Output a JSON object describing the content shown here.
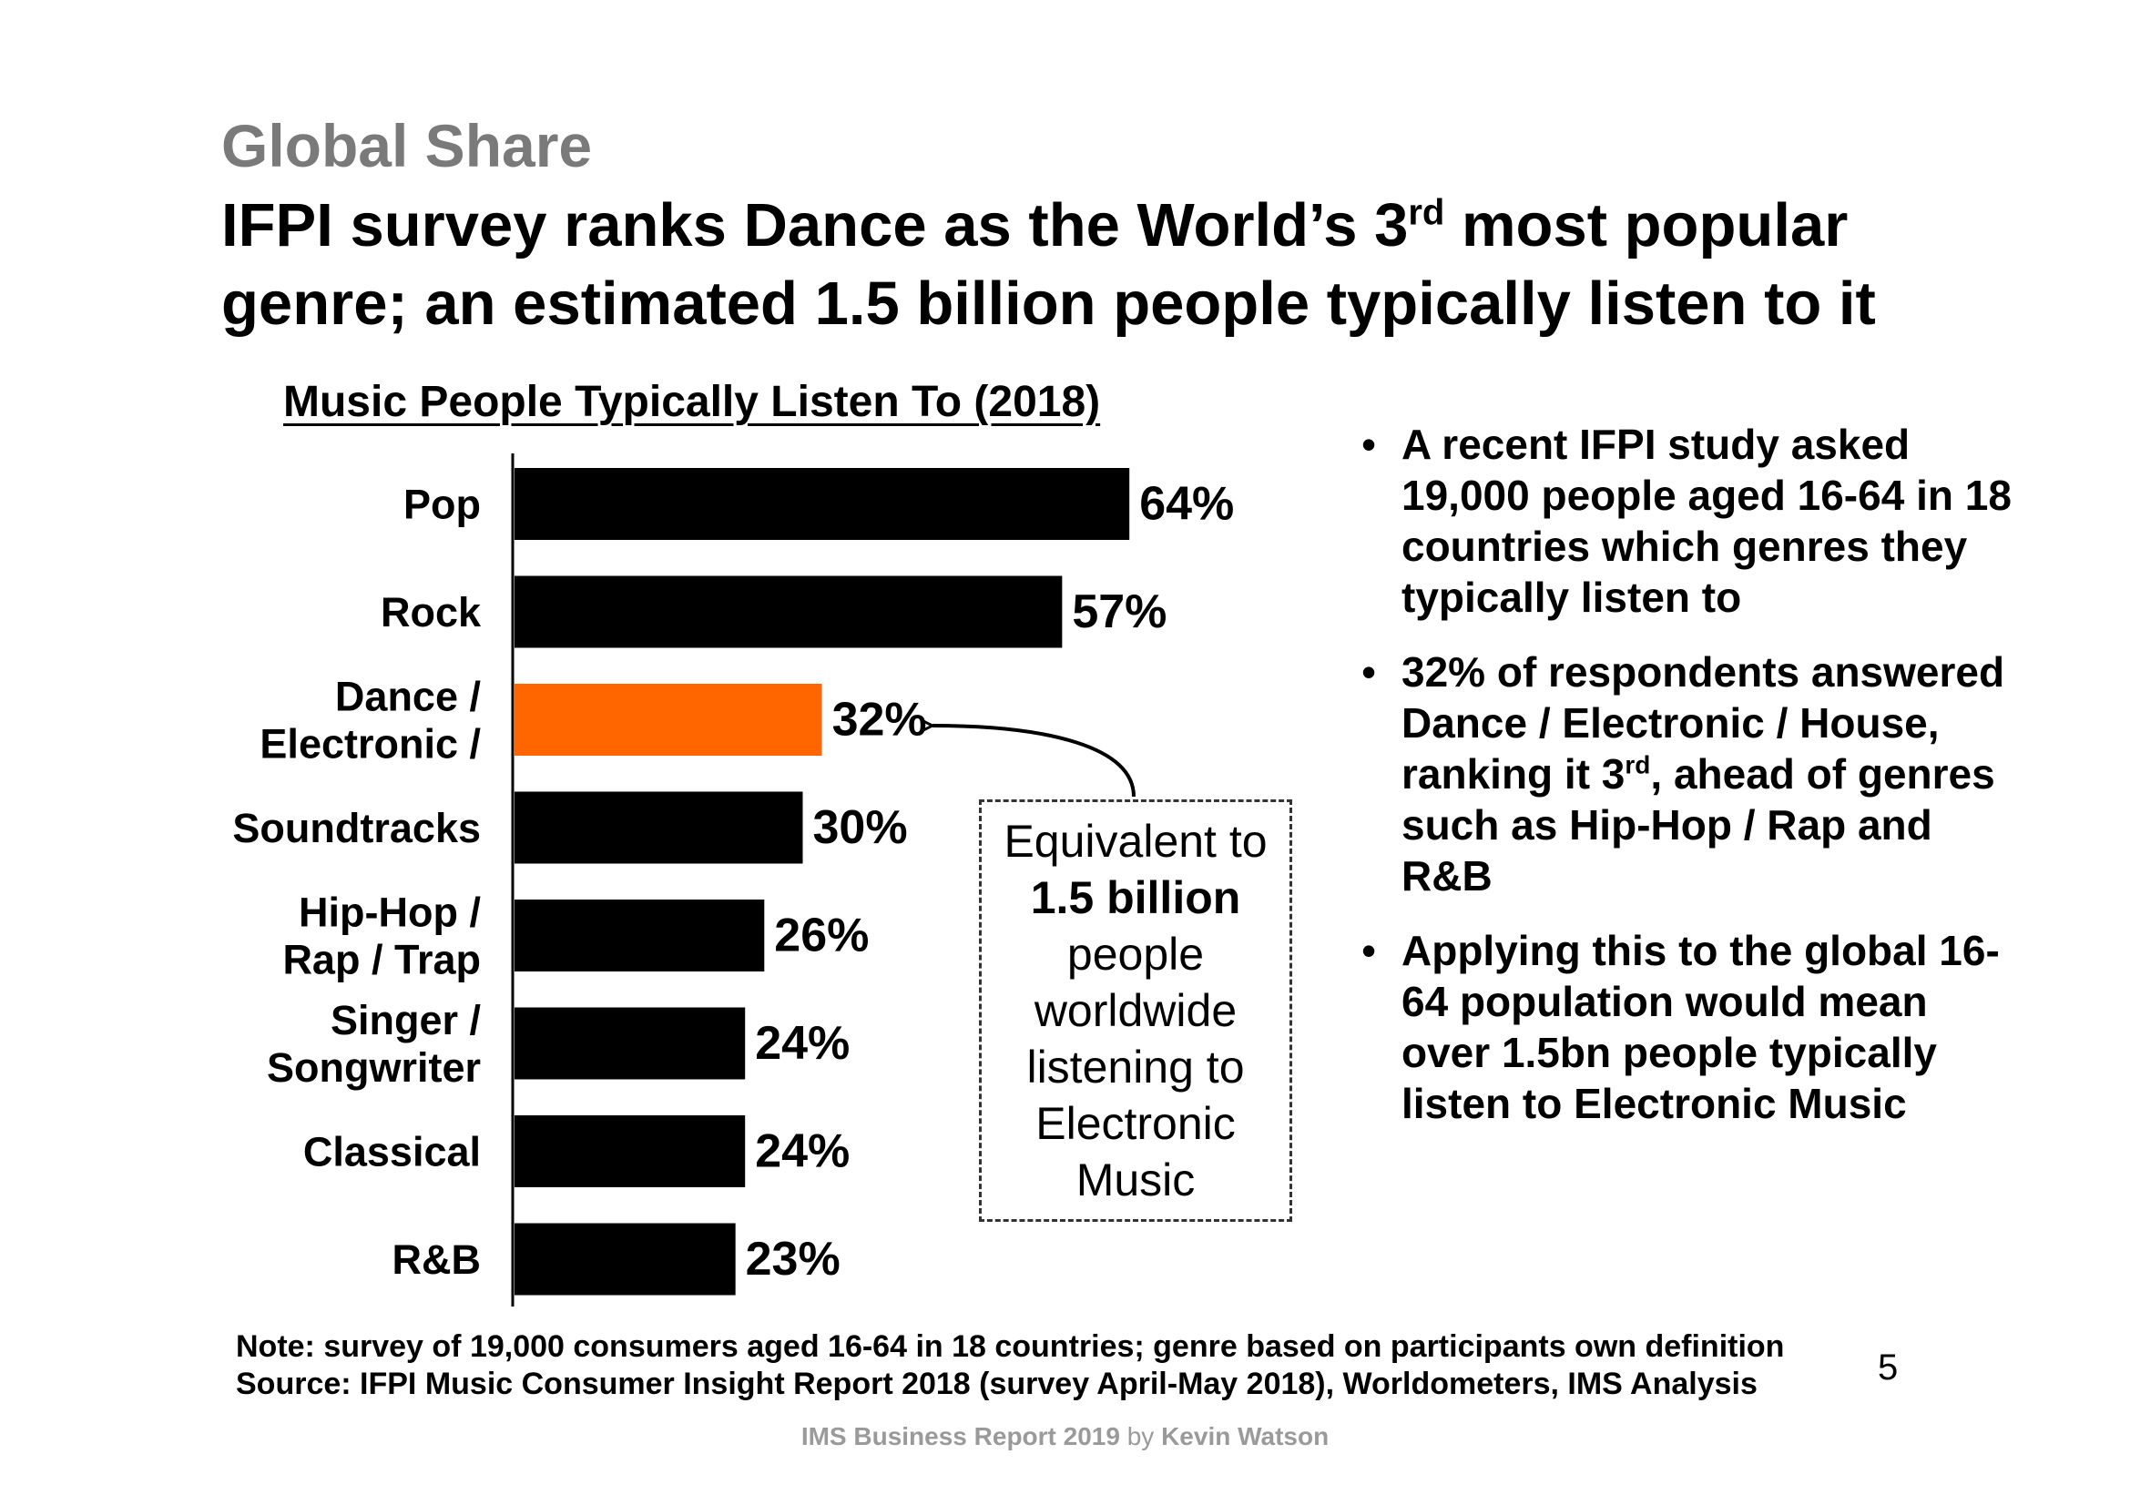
{
  "header": {
    "kicker": "Global Share",
    "headline_part1": "IFPI survey ranks Dance as the World’s 3",
    "headline_sup": "rd",
    "headline_part2": " most popular",
    "headline_line2": "genre; an estimated 1.5 billion people typically listen to it"
  },
  "chart_data": {
    "type": "bar",
    "orientation": "horizontal",
    "title": "Music People Typically Listen To (2018)",
    "categories": [
      [
        "Pop"
      ],
      [
        "Rock"
      ],
      [
        "Dance /",
        "Electronic /"
      ],
      [
        "Soundtracks"
      ],
      [
        "Hip-Hop /",
        "Rap / Trap"
      ],
      [
        "Singer /",
        "Songwriter"
      ],
      [
        "Classical"
      ],
      [
        "R&B"
      ]
    ],
    "values": [
      64,
      57,
      32,
      30,
      26,
      24,
      24,
      23
    ],
    "value_labels": [
      "64%",
      "57%",
      "32%",
      "30%",
      "26%",
      "24%",
      "24%",
      "23%"
    ],
    "highlight_index": 2,
    "xlim": [
      0,
      100
    ],
    "colors": {
      "bar": "#000000",
      "highlight": "#ff6600"
    }
  },
  "callout": {
    "line1": "Equivalent to",
    "big": "1.5 billion",
    "rest": [
      "people",
      "worldwide",
      "listening to",
      "Electronic",
      "Music"
    ]
  },
  "bullets": {
    "b1": "A recent IFPI study asked 19,000 people aged 16-64 in 18 countries which genres they typically listen to",
    "b2_part1": "32% of respondents answered Dance / Electronic / House, ranking it 3",
    "b2_sup": "rd",
    "b2_part2": ", ahead of genres such as Hip-Hop / Rap and R&B",
    "b3": "Applying this to the global 16-64 population would mean over 1.5bn people typically listen to Electronic Music"
  },
  "note": {
    "line1": "Note: survey of 19,000 consumers aged 16-64 in 18 countries; genre based on participants own definition",
    "line2": "Source: IFPI Music Consumer Insight Report 2018 (survey April-May 2018), Worldometers, IMS Analysis"
  },
  "page_number": "5",
  "footer": {
    "report": "IMS Business Report 2019",
    "by": "by",
    "author": "Kevin Watson"
  }
}
